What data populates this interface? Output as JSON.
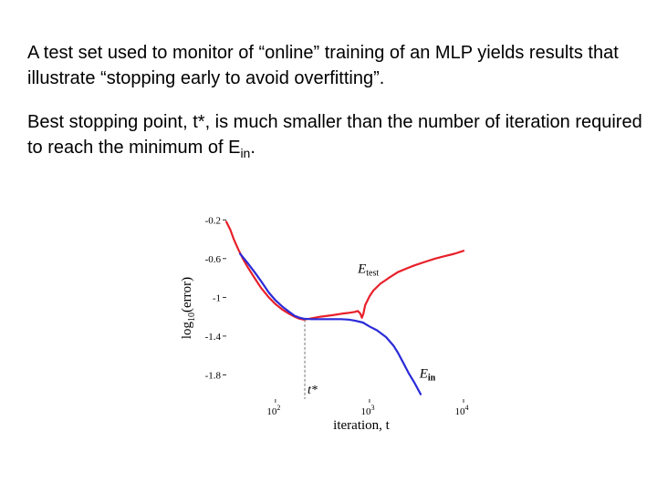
{
  "slide": {
    "paragraph1": "A test set used to monitor of “online” training of an MLP yields results that illustrate “stopping early to avoid overfitting”.",
    "paragraph2_main": "Best stopping point, t*, is much smaller than the number of iteration required to reach the minimum of E",
    "paragraph2_sub": "in",
    "paragraph2_end": "."
  },
  "chart_data": {
    "type": "line",
    "xscale": "log",
    "xlim": [
      30,
      10000
    ],
    "ylim": [
      -2.05,
      -0.15
    ],
    "xlabel": "iteration, t",
    "ylabel": "log10(error)",
    "ylabel_main": "log",
    "ylabel_sub": "10",
    "ylabel_rest": "(error)",
    "x_ticks": [
      {
        "value": 100,
        "base": "10",
        "exp": "2"
      },
      {
        "value": 1000,
        "base": "10",
        "exp": "3"
      },
      {
        "value": 10000,
        "base": "10",
        "exp": "4"
      }
    ],
    "y_ticks": [
      {
        "value": -0.2,
        "label": "-0.2"
      },
      {
        "value": -0.6,
        "label": "-0.6"
      },
      {
        "value": -1.0,
        "label": "-1"
      },
      {
        "value": -1.4,
        "label": "-1.4"
      },
      {
        "value": -1.8,
        "label": "-1.8"
      }
    ],
    "grid": false,
    "series": [
      {
        "name": "E_test",
        "label_main": "E",
        "label_sub": "test",
        "color": "#e8202a",
        "label_at": {
          "x": 750,
          "y": -0.7
        },
        "points": [
          [
            30,
            -0.22
          ],
          [
            33,
            -0.3
          ],
          [
            36,
            -0.4
          ],
          [
            40,
            -0.5
          ],
          [
            45,
            -0.6
          ],
          [
            50,
            -0.68
          ],
          [
            60,
            -0.8
          ],
          [
            70,
            -0.9
          ],
          [
            85,
            -1.0
          ],
          [
            100,
            -1.07
          ],
          [
            120,
            -1.13
          ],
          [
            140,
            -1.17
          ],
          [
            160,
            -1.2
          ],
          [
            180,
            -1.22
          ],
          [
            200,
            -1.23
          ],
          [
            230,
            -1.22
          ],
          [
            300,
            -1.2
          ],
          [
            400,
            -1.185
          ],
          [
            500,
            -1.17
          ],
          [
            600,
            -1.16
          ],
          [
            700,
            -1.15
          ],
          [
            750,
            -1.14
          ],
          [
            800,
            -1.17
          ],
          [
            830,
            -1.21
          ],
          [
            860,
            -1.17
          ],
          [
            900,
            -1.08
          ],
          [
            1000,
            -0.99
          ],
          [
            1100,
            -0.93
          ],
          [
            1300,
            -0.86
          ],
          [
            1600,
            -0.8
          ],
          [
            2000,
            -0.74
          ],
          [
            2500,
            -0.7
          ],
          [
            3000,
            -0.67
          ],
          [
            4000,
            -0.63
          ],
          [
            5000,
            -0.6
          ],
          [
            6000,
            -0.58
          ],
          [
            8000,
            -0.55
          ],
          [
            10000,
            -0.52
          ]
        ]
      },
      {
        "name": "E_in",
        "label_main": "E",
        "label_sub": "in",
        "color": "#2a2ad8",
        "label_at": {
          "x": 3400,
          "y": -1.78
        },
        "points": [
          [
            42,
            -0.55
          ],
          [
            50,
            -0.64
          ],
          [
            60,
            -0.74
          ],
          [
            70,
            -0.83
          ],
          [
            85,
            -0.95
          ],
          [
            100,
            -1.03
          ],
          [
            120,
            -1.1
          ],
          [
            140,
            -1.15
          ],
          [
            160,
            -1.19
          ],
          [
            180,
            -1.21
          ],
          [
            200,
            -1.22
          ],
          [
            240,
            -1.225
          ],
          [
            300,
            -1.225
          ],
          [
            400,
            -1.225
          ],
          [
            500,
            -1.225
          ],
          [
            600,
            -1.23
          ],
          [
            700,
            -1.24
          ],
          [
            850,
            -1.26
          ],
          [
            1000,
            -1.3
          ],
          [
            1200,
            -1.34
          ],
          [
            1500,
            -1.41
          ],
          [
            1800,
            -1.5
          ],
          [
            2000,
            -1.57
          ],
          [
            2300,
            -1.68
          ],
          [
            2600,
            -1.78
          ],
          [
            3000,
            -1.88
          ],
          [
            3500,
            -2.0
          ]
        ]
      }
    ],
    "annotations": [
      {
        "type": "vline",
        "x": 205,
        "from_y": -1.23,
        "label": "t*"
      }
    ]
  }
}
